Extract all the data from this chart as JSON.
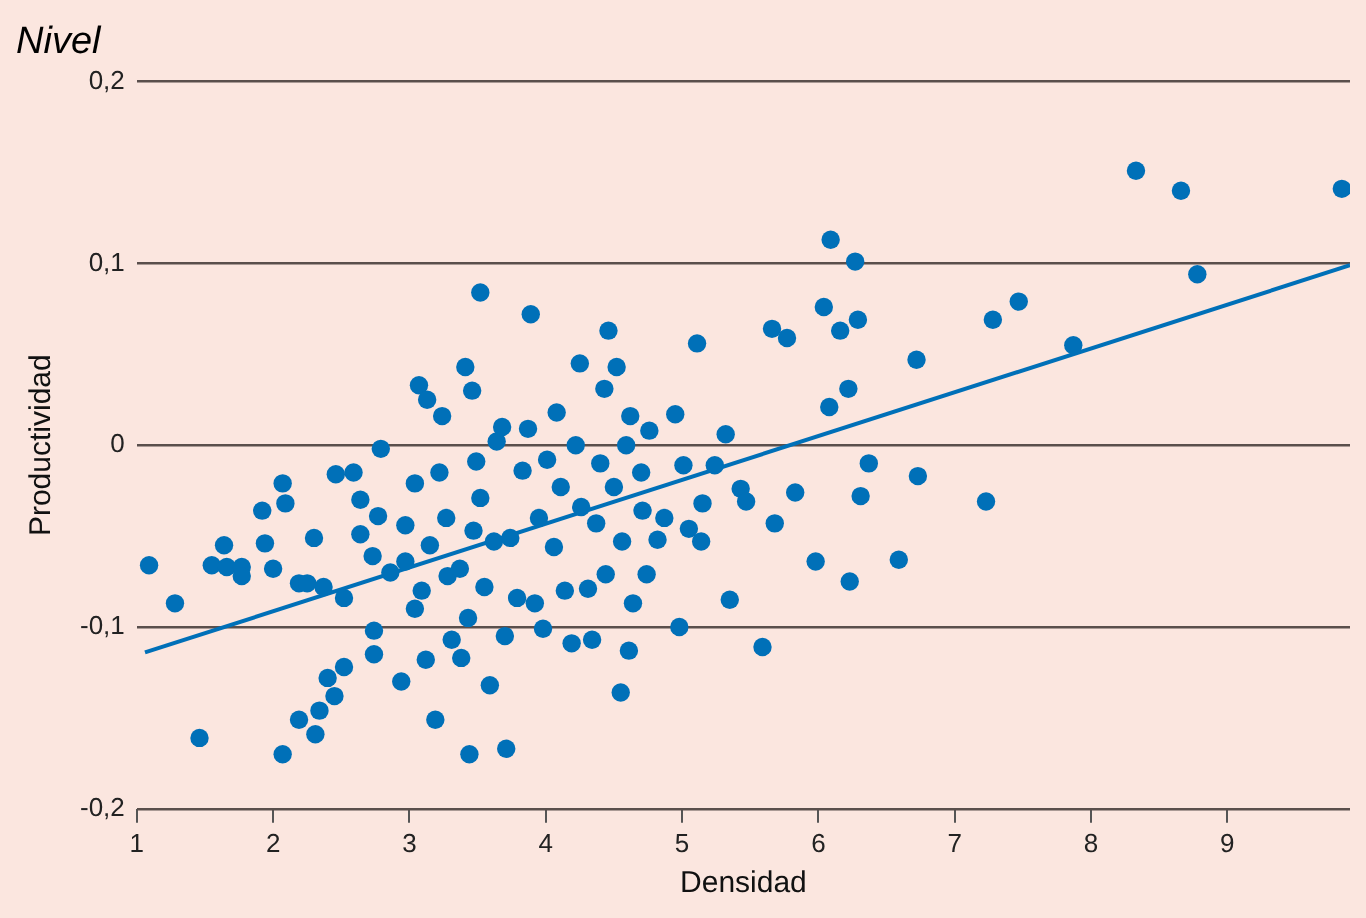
{
  "chart_data": {
    "type": "scatter",
    "subtitle": "Nivel",
    "xlabel": "Densidad",
    "ylabel": "Productividad",
    "xlim": [
      1,
      9.9
    ],
    "xticks": [
      1,
      2,
      3,
      4,
      5,
      6,
      7,
      8,
      9
    ],
    "ylim": [
      -0.2,
      0.2
    ],
    "yticks": [
      {
        "value": -0.2,
        "label": "-0,2"
      },
      {
        "value": -0.1,
        "label": "-0,1"
      },
      0,
      {
        "value": 0.1,
        "label": "0,1"
      },
      {
        "value": 0.2,
        "label": "0,2"
      }
    ],
    "grid": "y",
    "legend": false,
    "marker": "circle",
    "series": [
      {
        "color": "#0070b8",
        "x": [
          1.09,
          1.28,
          1.46,
          1.55,
          1.64,
          1.66,
          1.77,
          1.77,
          1.94,
          1.92,
          2.0,
          2.07,
          2.09,
          2.07,
          2.19,
          2.19,
          2.25,
          2.31,
          2.34,
          2.3,
          2.37,
          2.4,
          2.45,
          2.46,
          2.52,
          2.52,
          2.59,
          2.64,
          2.64,
          2.73,
          2.77,
          2.79,
          2.74,
          2.74,
          2.86,
          2.94,
          2.97,
          2.97,
          3.04,
          3.04,
          3.07,
          3.09,
          3.12,
          3.13,
          3.15,
          3.19,
          3.22,
          3.24,
          3.27,
          3.28,
          3.31,
          3.37,
          3.38,
          3.41,
          3.43,
          3.46,
          3.47,
          3.49,
          3.52,
          3.52,
          3.55,
          3.59,
          3.44,
          3.62,
          3.64,
          3.68,
          3.7,
          3.71,
          3.74,
          3.79,
          3.83,
          3.87,
          3.89,
          3.92,
          3.95,
          3.98,
          4.01,
          4.06,
          4.08,
          4.11,
          4.14,
          4.19,
          4.22,
          4.25,
          4.26,
          4.31,
          4.34,
          4.37,
          4.4,
          4.43,
          4.44,
          4.46,
          4.5,
          4.52,
          4.55,
          4.56,
          4.59,
          4.61,
          4.62,
          4.64,
          4.7,
          4.71,
          4.74,
          4.76,
          4.82,
          4.87,
          4.95,
          4.98,
          5.01,
          5.05,
          5.11,
          5.14,
          5.15,
          5.24,
          5.32,
          5.35,
          5.43,
          5.47,
          5.59,
          5.68,
          5.66,
          5.77,
          5.83,
          5.98,
          6.04,
          6.08,
          6.09,
          6.16,
          6.22,
          6.27,
          6.29,
          6.23,
          6.31,
          6.37,
          6.59,
          6.72,
          6.73,
          7.23,
          7.28,
          7.47,
          7.87,
          8.33,
          8.66,
          8.78,
          9.84
        ],
        "values": [
          -0.066,
          -0.087,
          -0.161,
          -0.066,
          -0.055,
          -0.067,
          -0.067,
          -0.072,
          -0.054,
          -0.036,
          -0.068,
          -0.021,
          -0.032,
          -0.17,
          -0.151,
          -0.076,
          -0.076,
          -0.159,
          -0.146,
          -0.051,
          -0.078,
          -0.128,
          -0.138,
          -0.016,
          -0.084,
          -0.122,
          -0.015,
          -0.03,
          -0.049,
          -0.061,
          -0.039,
          -0.002,
          -0.102,
          -0.115,
          -0.07,
          -0.13,
          -0.064,
          -0.044,
          -0.021,
          -0.09,
          0.033,
          -0.08,
          -0.118,
          0.025,
          -0.055,
          -0.151,
          -0.015,
          0.016,
          -0.04,
          -0.072,
          -0.107,
          -0.068,
          -0.117,
          0.043,
          -0.095,
          0.03,
          -0.047,
          -0.009,
          0.084,
          -0.029,
          -0.078,
          -0.132,
          -0.17,
          -0.053,
          0.002,
          0.01,
          -0.105,
          -0.167,
          -0.051,
          -0.084,
          -0.014,
          0.009,
          0.072,
          -0.087,
          -0.04,
          -0.101,
          -0.008,
          -0.056,
          0.018,
          -0.023,
          -0.08,
          -0.109,
          0.0,
          0.045,
          -0.034,
          -0.079,
          -0.107,
          -0.043,
          -0.01,
          0.031,
          -0.071,
          0.063,
          -0.023,
          0.043,
          -0.136,
          -0.053,
          0.0,
          -0.113,
          0.016,
          -0.087,
          -0.015,
          -0.036,
          -0.071,
          0.008,
          -0.052,
          -0.04,
          0.017,
          -0.1,
          -0.011,
          -0.046,
          0.056,
          -0.053,
          -0.032,
          -0.011,
          0.006,
          -0.085,
          -0.024,
          -0.031,
          -0.111,
          -0.043,
          0.064,
          0.059,
          -0.026,
          -0.064,
          0.076,
          0.021,
          0.113,
          0.063,
          0.031,
          0.101,
          0.069,
          -0.075,
          -0.028,
          -0.01,
          -0.063,
          0.047,
          -0.017,
          -0.031,
          0.069,
          0.079,
          0.055,
          0.151,
          0.14,
          0.094,
          0.141
        ]
      },
      {
        "type": "line",
        "color": "#0070b8",
        "marker": "none",
        "line_style": "solid",
        "x": [
          1.06,
          9.9
        ],
        "values": [
          -0.114,
          0.099
        ]
      }
    ]
  }
}
